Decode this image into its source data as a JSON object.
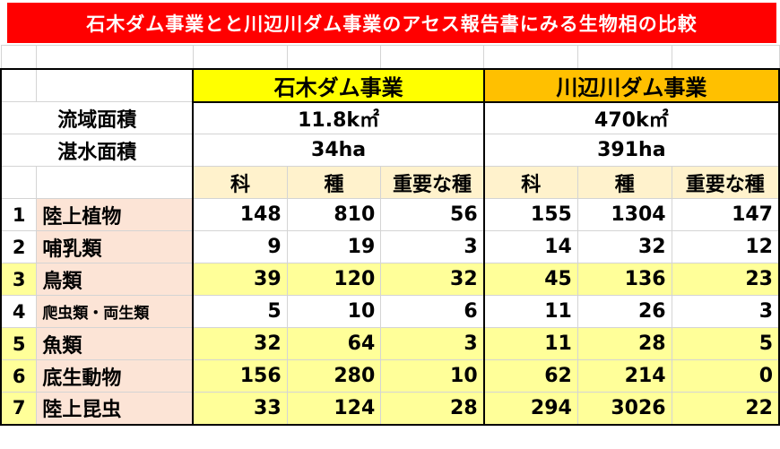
{
  "title": "石木ダム事業とと川辺川ダム事業のアセス報告書にみる生物相の比較",
  "projects": {
    "ishiki": "石木ダム事業",
    "kawabe": "川辺川ダム事業"
  },
  "summary": [
    {
      "label": "流域面積",
      "ishiki": "11.8k㎡",
      "kawabe": "470k㎡"
    },
    {
      "label": "湛水面積",
      "ishiki": "34ha",
      "kawabe": "391ha"
    }
  ],
  "columns": [
    "科",
    "種",
    "重要な種"
  ],
  "rows": [
    {
      "no": "1",
      "name": "陸上植物",
      "values": [
        "148",
        "810",
        "56",
        "155",
        "1304",
        "147"
      ]
    },
    {
      "no": "2",
      "name": "哺乳類",
      "values": [
        "9",
        "19",
        "3",
        "14",
        "32",
        "12"
      ]
    },
    {
      "no": "3",
      "name": "鳥類",
      "values": [
        "39",
        "120",
        "32",
        "45",
        "136",
        "23"
      ]
    },
    {
      "no": "4",
      "name": "爬虫類・両生類",
      "values": [
        "5",
        "10",
        "6",
        "11",
        "26",
        "3"
      ]
    },
    {
      "no": "5",
      "name": "魚類",
      "values": [
        "32",
        "64",
        "3",
        "11",
        "28",
        "5"
      ]
    },
    {
      "no": "6",
      "name": "底生動物",
      "values": [
        "156",
        "280",
        "10",
        "62",
        "214",
        "0"
      ]
    },
    {
      "no": "7",
      "name": "陸上昆虫",
      "values": [
        "33",
        "124",
        "28",
        "294",
        "3026",
        "22"
      ]
    }
  ],
  "colors": {
    "title_bg": "#ff0000",
    "ishiki_header": "#ffff00",
    "kawabe_header": "#ffc000",
    "row_label": "#fce4d6",
    "column_header": "#fff2cc",
    "highlight_row": "#ffff99"
  }
}
